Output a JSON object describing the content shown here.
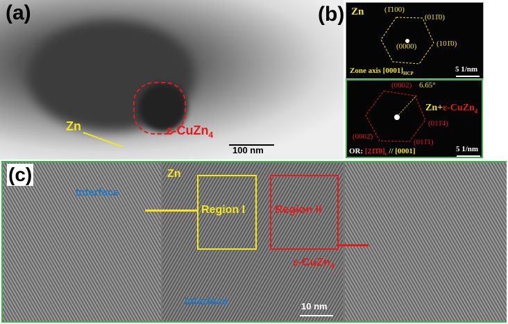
{
  "panel_a": {
    "label": "(a)",
    "zn": "Zn",
    "phase": "ε-CuZn",
    "phase_sub": "4",
    "scale": "100 nm"
  },
  "panel_b_top": {
    "label": "(b)",
    "zn": "Zn",
    "i1": "(1̄100)",
    "i2": "(011̄0)",
    "i3": "(101̄0)",
    "i0": "(0000)",
    "zone": "Zone axis [0001]",
    "zone_sub": "HCP",
    "scale": "5 1/nm"
  },
  "panel_b_bottom": {
    "i1": "(0002)",
    "angle": "6.65°",
    "zn": "Zn+",
    "phase": "ε-CuZn",
    "phase_sub": "4",
    "i2": "(011̄4)",
    "i3": "(011̄1)",
    "i4": "(0002̄)",
    "or": "OR: ",
    "or_val": "[21̄1̄0]",
    "or_sub": "ε",
    "or_rest": " // [0001]",
    "scale": "5 1/nm"
  },
  "panel_c": {
    "label": "(c)",
    "interface_left": "Interface",
    "zn": "Zn",
    "region1": "Region I",
    "region2": "Region II",
    "phase": "ε-CuZn",
    "phase_sub": "4",
    "interface_mid": "Interface",
    "scale": "10 nm"
  },
  "colors": {
    "yellow": "#f5e61c",
    "red": "#e41a1c",
    "blue": "#1f77c4",
    "green": "#3cb44b"
  }
}
